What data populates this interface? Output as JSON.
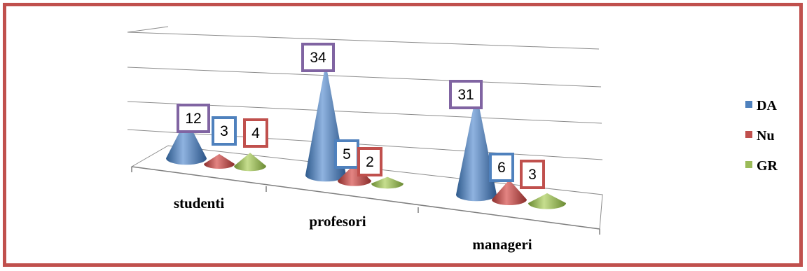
{
  "chart_data": {
    "type": "bar",
    "style": "3d-cone",
    "categories": [
      "studenti",
      "profesori",
      "manageri"
    ],
    "series": [
      {
        "name": "DA",
        "color": "#4f81bd",
        "label_border": "#8064a2",
        "values": [
          12,
          34,
          31
        ]
      },
      {
        "name": "Nu",
        "color": "#c0504d",
        "label_border": "#4f81bd",
        "values": [
          3,
          5,
          6
        ]
      },
      {
        "name": "GR",
        "color": "#9bbb59",
        "label_border": "#c0504d",
        "values": [
          4,
          2,
          3
        ]
      }
    ],
    "title": "",
    "xlabel": "",
    "ylabel": "",
    "ylim": [
      0,
      40
    ],
    "grid": true,
    "legend_position": "right",
    "frame_color": "#c0504d"
  }
}
